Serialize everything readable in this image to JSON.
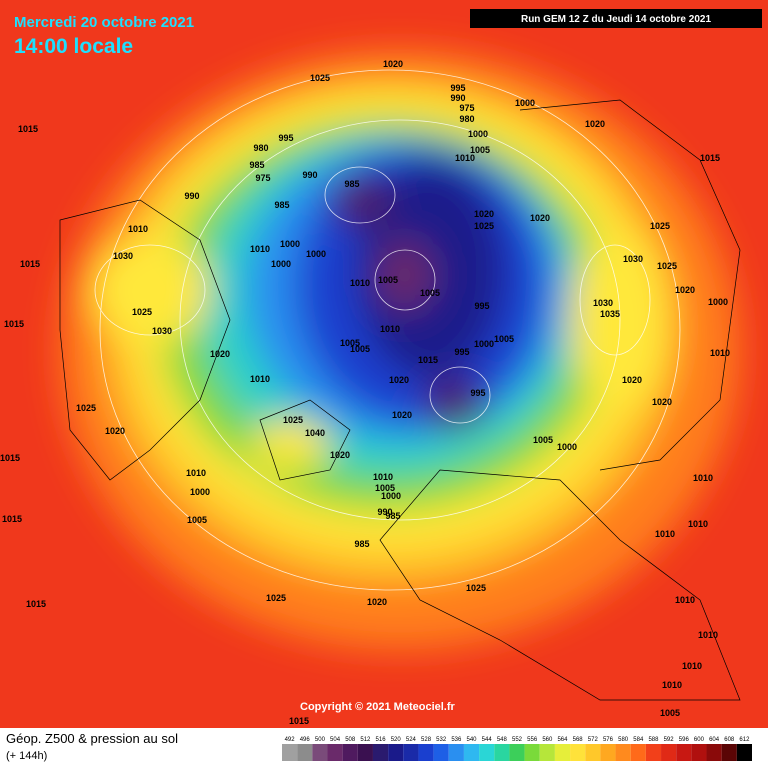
{
  "header": {
    "date": "Mercredi 20 octobre 2021",
    "time": "14:00 locale",
    "run": "Run GEM 12 Z du Jeudi 14 octobre 2021"
  },
  "copyright": "Copyright © 2021 Meteociel.fr",
  "footer": {
    "title": "Géop. Z500 & pression au sol",
    "lead": "(+ 144h)",
    "scale": [
      492,
      496,
      500,
      504,
      508,
      512,
      516,
      520,
      524,
      528,
      532,
      536,
      540,
      544,
      548,
      552,
      556,
      560,
      564,
      568,
      572,
      576,
      580,
      584,
      588,
      592,
      596,
      600,
      604,
      608,
      612
    ]
  },
  "isobar_labels": [
    "1025",
    "1020",
    "995",
    "990",
    "975",
    "980",
    "1000",
    "1000",
    "1005",
    "1010",
    "1020",
    "1015",
    "1015",
    "995",
    "980",
    "985",
    "975",
    "990",
    "985",
    "990",
    "985",
    "1020",
    "1025",
    "1020",
    "1025",
    "1010",
    "1010",
    "1000",
    "1000",
    "1000",
    "1030",
    "1015",
    "1030",
    "1025",
    "1005",
    "1010",
    "1005",
    "995",
    "1020",
    "1030",
    "1035",
    "1000",
    "1025",
    "1015",
    "1030",
    "1010",
    "995",
    "1005",
    "1005",
    "1015",
    "1005",
    "1000",
    "1020",
    "1010",
    "1020",
    "1010",
    "1020",
    "995",
    "1020",
    "1025",
    "1020",
    "1025",
    "1040",
    "1020",
    "1005",
    "1000",
    "1020",
    "1015",
    "1010",
    "1010",
    "1005",
    "1000",
    "1000",
    "1010",
    "985",
    "990",
    "1005",
    "1015",
    "1010",
    "985",
    "1010",
    "1025",
    "1025",
    "1020",
    "1015",
    "1010",
    "1010",
    "1010",
    "1010",
    "1005",
    "1015"
  ]
}
